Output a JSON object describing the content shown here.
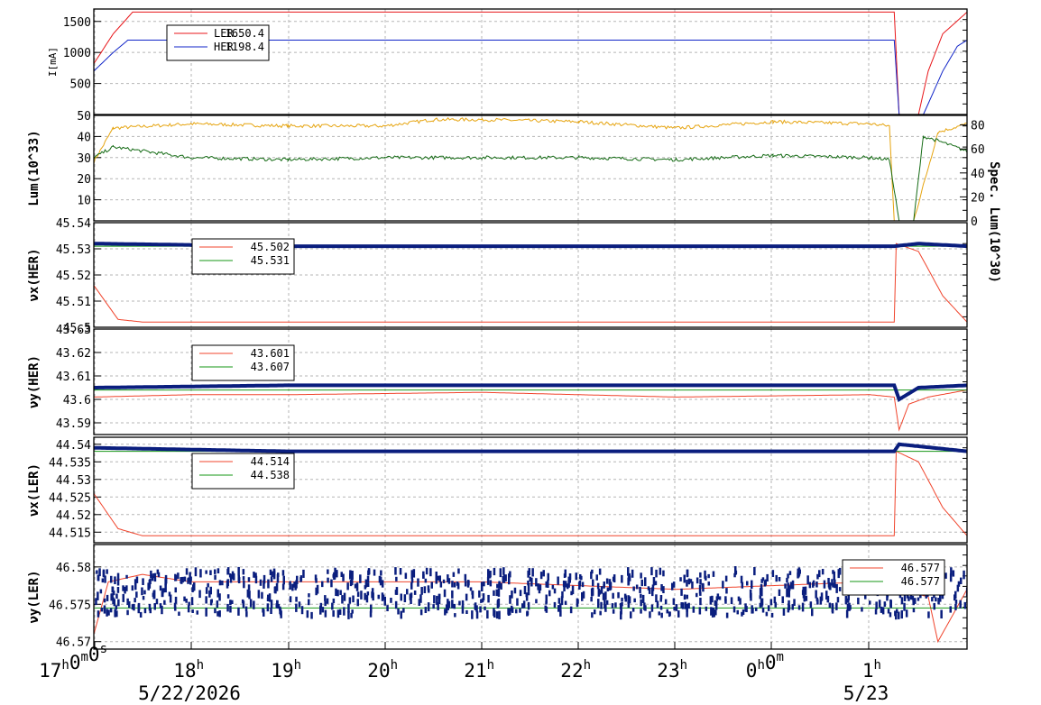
{
  "x_axis": {
    "ticks": [
      {
        "main": "17",
        "sup": "h",
        "main2": "0",
        "sup2": "m",
        "main3": "0",
        "sup3": "s"
      },
      {
        "main": "18",
        "sup": "h"
      },
      {
        "main": "19",
        "sup": "h"
      },
      {
        "main": "20",
        "sup": "h"
      },
      {
        "main": "21",
        "sup": "h"
      },
      {
        "main": "22",
        "sup": "h"
      },
      {
        "main": "23",
        "sup": "h"
      },
      {
        "main": "0",
        "sup": "h",
        "main2": "0",
        "sup2": "m"
      },
      {
        "main": "1",
        "sup": "h"
      }
    ],
    "dates": [
      "5/22/2026",
      "5/23"
    ]
  },
  "colors": {
    "ler": "#e8171b",
    "her": "#1024c8",
    "lum": "#e6a40f",
    "spec": "#156b15",
    "meas": "#0a1e7e",
    "ref_red": "#f0442c",
    "ref_green": "#169716"
  },
  "chart_data": [
    {
      "type": "line",
      "panel": "current",
      "ylabel": "I[mA]",
      "yticks": [
        500,
        1000,
        1500
      ],
      "ylim": [
        0,
        1700
      ],
      "legend": [
        {
          "name": "LER",
          "value": "1650.4"
        },
        {
          "name": "HER",
          "value": "1198.4"
        }
      ],
      "series": [
        {
          "name": "LER",
          "points": [
            [
              16.0,
              820
            ],
            [
              16.2,
              1300
            ],
            [
              16.4,
              1650
            ],
            [
              24.25,
              1650
            ],
            [
              24.3,
              0
            ],
            [
              24.5,
              0
            ],
            [
              24.6,
              700
            ],
            [
              24.75,
              1300
            ],
            [
              25.0,
              1650
            ]
          ]
        },
        {
          "name": "HER",
          "points": [
            [
              16.0,
              700
            ],
            [
              16.2,
              1000
            ],
            [
              16.35,
              1198
            ],
            [
              24.25,
              1198
            ],
            [
              24.3,
              0
            ],
            [
              24.55,
              0
            ],
            [
              24.75,
              700
            ],
            [
              24.9,
              1100
            ],
            [
              25.0,
              1198
            ]
          ]
        }
      ]
    },
    {
      "type": "line",
      "panel": "luminosity",
      "ylabel": "Lum(10^33)",
      "y2label": "Spec. Lum(10^30)",
      "yticks": [
        10,
        20,
        30,
        40,
        50
      ],
      "y2ticks": [
        0,
        20,
        40,
        60,
        80
      ],
      "ylim": [
        0,
        50
      ],
      "series": [
        {
          "name": "Lum",
          "points": [
            [
              16.0,
              28
            ],
            [
              16.2,
              44
            ],
            [
              17.0,
              46
            ],
            [
              18.0,
              45
            ],
            [
              19.0,
              45
            ],
            [
              19.5,
              48
            ],
            [
              20.0,
              48
            ],
            [
              21.0,
              47
            ],
            [
              22.0,
              44
            ],
            [
              23.0,
              47
            ],
            [
              24.0,
              46
            ],
            [
              24.2,
              45
            ],
            [
              24.25,
              0
            ],
            [
              24.45,
              0
            ],
            [
              24.7,
              42
            ],
            [
              25.0,
              46
            ]
          ]
        },
        {
          "name": "Spec. Lum",
          "points": [
            [
              16.0,
              30
            ],
            [
              16.2,
              35
            ],
            [
              17.0,
              30
            ],
            [
              18.0,
              29
            ],
            [
              19.0,
              30
            ],
            [
              20.0,
              30
            ],
            [
              21.0,
              30
            ],
            [
              22.0,
              29
            ],
            [
              23.0,
              31
            ],
            [
              24.0,
              30
            ],
            [
              24.2,
              29
            ],
            [
              24.3,
              0
            ],
            [
              24.45,
              0
            ],
            [
              24.55,
              40
            ],
            [
              24.7,
              38
            ],
            [
              25.0,
              33
            ]
          ]
        }
      ]
    },
    {
      "type": "line",
      "panel": "nux_her",
      "ylabel": "νx(HER)",
      "yticks": [
        45.5,
        45.51,
        45.52,
        45.53,
        45.54
      ],
      "ylim": [
        45.5,
        45.54
      ],
      "legend": [
        {
          "name": "",
          "value": "45.502"
        },
        {
          "name": "",
          "value": "45.531"
        }
      ],
      "series": [
        {
          "name": "set",
          "points": [
            [
              16.0,
              45.516
            ],
            [
              16.25,
              45.503
            ],
            [
              16.5,
              45.502
            ],
            [
              24.25,
              45.502
            ],
            [
              24.27,
              45.532
            ],
            [
              24.5,
              45.529
            ],
            [
              24.75,
              45.512
            ],
            [
              25.0,
              45.502
            ]
          ]
        },
        {
          "name": "ref",
          "points": [
            [
              16.0,
              45.531
            ],
            [
              25.0,
              45.531
            ]
          ]
        },
        {
          "name": "measured",
          "points": [
            [
              16.0,
              45.532
            ],
            [
              18.0,
              45.531
            ],
            [
              20.0,
              45.531
            ],
            [
              22.0,
              45.531
            ],
            [
              24.25,
              45.531
            ],
            [
              24.5,
              45.532
            ],
            [
              25.0,
              45.531
            ]
          ]
        }
      ]
    },
    {
      "type": "line",
      "panel": "nuy_her",
      "ylabel": "νy(HER)",
      "yticks": [
        43.59,
        43.6,
        43.61,
        43.62,
        43.63
      ],
      "ylim": [
        43.585,
        43.63
      ],
      "legend": [
        {
          "name": "",
          "value": "43.601"
        },
        {
          "name": "",
          "value": "43.607"
        }
      ],
      "series": [
        {
          "name": "set",
          "points": [
            [
              16.0,
              43.601
            ],
            [
              17.0,
              43.602
            ],
            [
              18.0,
              43.602
            ],
            [
              20.0,
              43.603
            ],
            [
              22.0,
              43.601
            ],
            [
              24.0,
              43.602
            ],
            [
              24.25,
              43.601
            ],
            [
              24.3,
              43.587
            ],
            [
              24.4,
              43.598
            ],
            [
              24.6,
              43.601
            ],
            [
              25.0,
              43.604
            ]
          ]
        },
        {
          "name": "ref",
          "points": [
            [
              16.0,
              43.604
            ],
            [
              25.0,
              43.604
            ]
          ]
        },
        {
          "name": "measured",
          "points": [
            [
              16.0,
              43.605
            ],
            [
              18.0,
              43.606
            ],
            [
              20.0,
              43.606
            ],
            [
              22.0,
              43.606
            ],
            [
              24.25,
              43.606
            ],
            [
              24.3,
              43.6
            ],
            [
              24.5,
              43.605
            ],
            [
              25.0,
              43.606
            ]
          ]
        }
      ]
    },
    {
      "type": "line",
      "panel": "nux_ler",
      "ylabel": "νx(LER)",
      "yticks": [
        44.515,
        44.52,
        44.525,
        44.53,
        44.535,
        44.54
      ],
      "ylim": [
        44.512,
        44.542
      ],
      "legend": [
        {
          "name": "",
          "value": "44.514"
        },
        {
          "name": "",
          "value": "44.538"
        }
      ],
      "series": [
        {
          "name": "set",
          "points": [
            [
              16.0,
              44.526
            ],
            [
              16.25,
              44.516
            ],
            [
              16.5,
              44.514
            ],
            [
              24.25,
              44.514
            ],
            [
              24.27,
              44.538
            ],
            [
              24.5,
              44.535
            ],
            [
              24.75,
              44.522
            ],
            [
              25.0,
              44.514
            ]
          ]
        },
        {
          "name": "ref",
          "points": [
            [
              16.0,
              44.538
            ],
            [
              25.0,
              44.538
            ]
          ]
        },
        {
          "name": "measured",
          "points": [
            [
              16.0,
              44.539
            ],
            [
              18.0,
              44.538
            ],
            [
              20.0,
              44.538
            ],
            [
              22.0,
              44.538
            ],
            [
              24.25,
              44.538
            ],
            [
              24.3,
              44.54
            ],
            [
              25.0,
              44.538
            ]
          ]
        }
      ]
    },
    {
      "type": "scatter",
      "panel": "nuy_ler",
      "ylabel": "νy(LER)",
      "yticks": [
        46.57,
        46.575,
        46.58
      ],
      "ylim": [
        46.569,
        46.583
      ],
      "legend": [
        {
          "name": "",
          "value": "46.577"
        },
        {
          "name": "",
          "value": "46.577"
        }
      ],
      "series": [
        {
          "name": "set",
          "points": [
            [
              16.0,
              46.571
            ],
            [
              16.15,
              46.578
            ],
            [
              16.5,
              46.579
            ],
            [
              17.0,
              46.578
            ],
            [
              18.0,
              46.578
            ],
            [
              20.0,
              46.578
            ],
            [
              22.0,
              46.577
            ],
            [
              24.0,
              46.578
            ],
            [
              24.6,
              46.576
            ],
            [
              24.7,
              46.57
            ],
            [
              25.0,
              46.577
            ]
          ]
        },
        {
          "name": "ref",
          "points": [
            [
              16.0,
              46.5745
            ],
            [
              25.0,
              46.5745
            ]
          ]
        },
        {
          "name": "measured_center",
          "points": [
            [
              16.0,
              46.5765
            ],
            [
              25.0,
              46.5765
            ]
          ]
        }
      ]
    }
  ]
}
